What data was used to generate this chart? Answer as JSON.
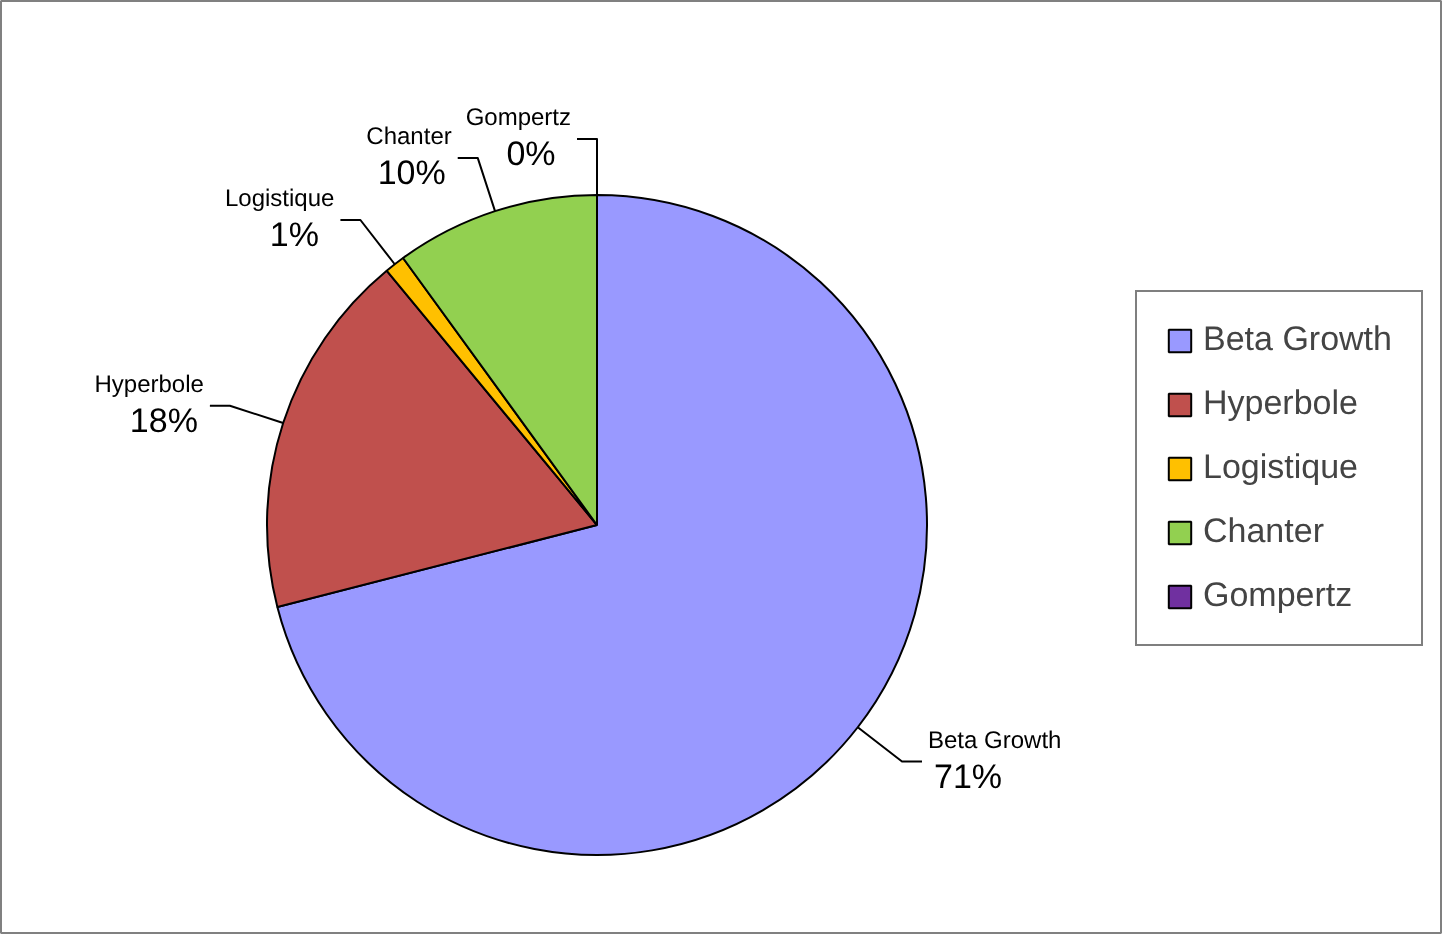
{
  "chart_data": {
    "type": "pie",
    "categories": [
      "Beta Growth",
      "Hyperbole",
      "Logistique",
      "Chanter",
      "Gompertz"
    ],
    "values": [
      71,
      18,
      1,
      10,
      0
    ],
    "colors": [
      "#9999ff",
      "#c0504d",
      "#ffc000",
      "#92d050",
      "#7030a0"
    ],
    "value_labels": [
      "71%",
      "18%",
      "1%",
      "10%",
      "0%"
    ],
    "legend": "right"
  }
}
